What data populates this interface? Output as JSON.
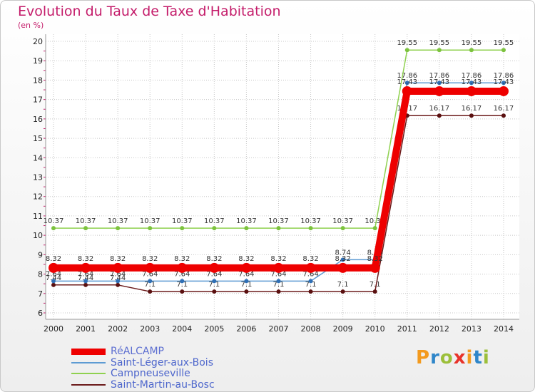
{
  "title": "Evolution du Taux de Taxe d'Habitation",
  "unit_label": "(en %)",
  "brand": {
    "name": "Proxiti",
    "colors": [
      "#f39a1e",
      "#2f86c9",
      "#9cbf3a",
      "#e8332a",
      "#f39a1e",
      "#2f86c9",
      "#9cbf3a"
    ]
  },
  "chart_data": {
    "type": "line",
    "title": "Evolution du Taux de Taxe d'Habitation",
    "ylabel": "(en %)",
    "xlabel": "",
    "ylim": [
      6,
      20
    ],
    "yticks": [
      6,
      7,
      8,
      9,
      10,
      11,
      12,
      13,
      14,
      15,
      16,
      17,
      18,
      19,
      20
    ],
    "grid": true,
    "legend_position": "bottom-left",
    "categories": [
      "2000",
      "2001",
      "2002",
      "2003",
      "2004",
      "2005",
      "2006",
      "2007",
      "2008",
      "2009",
      "2010",
      "2011",
      "2012",
      "2013",
      "2014"
    ],
    "series": [
      {
        "name": "Saint-Martin-au-Bosc",
        "color": "#6b1a1a",
        "marker": "#5a1010",
        "values": [
          7.44,
          7.44,
          7.44,
          7.1,
          7.1,
          7.1,
          7.1,
          7.1,
          7.1,
          7.1,
          7.1,
          16.17,
          16.17,
          16.17,
          16.17
        ],
        "labels": [
          "7.44",
          "7.44",
          "7.44",
          "7.1",
          "7.1",
          "7.1",
          "7.1",
          "7.1",
          "7.1",
          "7.1",
          "7.1",
          "16.17",
          "16.17",
          "16.17",
          "16.17"
        ]
      },
      {
        "name": "Saint-Léger-aux-Bois",
        "color": "#5d9bd3",
        "marker": "#2f6fb5",
        "values": [
          7.64,
          7.64,
          7.64,
          7.64,
          7.64,
          7.64,
          7.64,
          7.64,
          7.64,
          8.74,
          8.74,
          17.86,
          17.86,
          17.86,
          17.86
        ],
        "labels": [
          "7.64",
          "7.64",
          "7.64",
          "7.64",
          "7.64",
          "7.64",
          "7.64",
          "7.64",
          "7.64",
          "8.74",
          "8.74",
          "17.86",
          "17.86",
          "17.86",
          "17.86"
        ]
      },
      {
        "name": "Campneuseville",
        "color": "#8fd14f",
        "marker": "#7cc23e",
        "values": [
          10.37,
          10.37,
          10.37,
          10.37,
          10.37,
          10.37,
          10.37,
          10.37,
          10.37,
          10.37,
          10.37,
          19.55,
          19.55,
          19.55,
          19.55
        ],
        "labels": [
          "10.37",
          "10.37",
          "10.37",
          "10.37",
          "10.37",
          "10.37",
          "10.37",
          "10.37",
          "10.37",
          "10.37",
          "10.37",
          "19.55",
          "19.55",
          "19.55",
          "19.55"
        ]
      },
      {
        "name": "RéALCAMP",
        "color": "#ee0000",
        "marker": "#ee0000",
        "thick": true,
        "values": [
          8.32,
          8.32,
          8.32,
          8.32,
          8.32,
          8.32,
          8.32,
          8.32,
          8.32,
          8.32,
          8.32,
          17.43,
          17.43,
          17.43,
          17.43
        ],
        "labels": [
          "8.32",
          "8.32",
          "8.32",
          "8.32",
          "8.32",
          "8.32",
          "8.32",
          "8.32",
          "8.32",
          "8.32",
          "8.32",
          "17.43",
          "17.43",
          "17.43",
          "17.43"
        ]
      }
    ],
    "legend": [
      {
        "name": "RéALCAMP",
        "color": "#ee0000",
        "text_color": "#5d6fd1",
        "thick": true
      },
      {
        "name": "Saint-Léger-aux-Bois",
        "color": "#5d9bd3",
        "text_color": "#4d66cc"
      },
      {
        "name": "Campneuseville",
        "color": "#8fd14f",
        "text_color": "#4d66cc"
      },
      {
        "name": "Saint-Martin-au-Bosc",
        "color": "#6b1a1a",
        "text_color": "#4d66cc"
      }
    ]
  }
}
